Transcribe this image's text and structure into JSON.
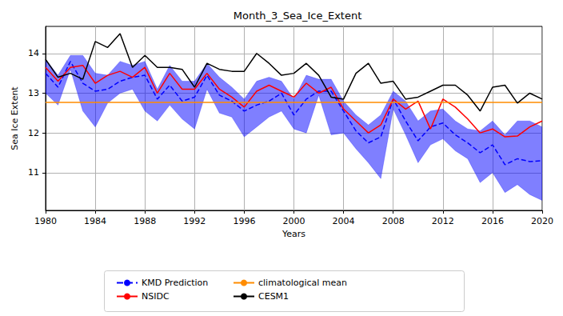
{
  "chart_data": {
    "type": "line",
    "title": "Month_3_Sea_Ice_Extent",
    "x_label": "Years",
    "y_label": "Sea Ice Extent",
    "x": [
      1980,
      1981,
      1982,
      1983,
      1984,
      1985,
      1986,
      1987,
      1988,
      1989,
      1990,
      1991,
      1992,
      1993,
      1994,
      1995,
      1996,
      1997,
      1998,
      1999,
      2000,
      2001,
      2002,
      2003,
      2004,
      2005,
      2006,
      2007,
      2008,
      2009,
      2010,
      2011,
      2012,
      2013,
      2014,
      2015,
      2016,
      2017,
      2018,
      2019,
      2020
    ],
    "series": [
      {
        "name": "KMD Prediction",
        "color": "#0000ff",
        "line_style": "dashed",
        "values": [
          13.5,
          13.15,
          13.8,
          13.25,
          13.05,
          13.1,
          13.3,
          13.4,
          13.45,
          12.85,
          13.2,
          12.8,
          12.9,
          13.45,
          12.95,
          12.8,
          12.55,
          12.7,
          12.8,
          13.0,
          12.45,
          12.85,
          13.05,
          13.05,
          12.55,
          12.05,
          11.75,
          11.9,
          12.85,
          12.3,
          11.8,
          12.15,
          12.25,
          11.95,
          11.75,
          11.5,
          11.7,
          11.2,
          11.35,
          11.28,
          11.3
        ]
      },
      {
        "name": "NSIDC",
        "color": "#ff0000",
        "line_style": "solid",
        "values": [
          13.65,
          13.3,
          13.65,
          13.7,
          13.25,
          13.45,
          13.55,
          13.4,
          13.65,
          13.0,
          13.5,
          13.1,
          13.1,
          13.5,
          13.1,
          12.9,
          12.65,
          13.05,
          13.2,
          13.05,
          12.9,
          13.25,
          13.0,
          13.15,
          12.6,
          12.3,
          12.0,
          12.2,
          12.85,
          12.6,
          12.8,
          12.1,
          12.85,
          12.65,
          12.35,
          12.0,
          12.1,
          11.9,
          11.92,
          12.15,
          12.3
        ]
      },
      {
        "name": "climatological mean",
        "color": "#ff8c00",
        "line_style": "solid",
        "values": [
          12.77,
          12.77,
          12.77,
          12.77,
          12.77,
          12.77,
          12.77,
          12.77,
          12.77,
          12.77,
          12.77,
          12.77,
          12.77,
          12.77,
          12.77,
          12.77,
          12.77,
          12.77,
          12.77,
          12.77,
          12.77,
          12.77,
          12.77,
          12.77,
          12.77,
          12.77,
          12.77,
          12.77,
          12.77,
          12.77,
          12.77,
          12.77,
          12.77,
          12.77,
          12.77,
          12.77,
          12.77,
          12.77,
          12.77,
          12.77,
          12.77
        ]
      },
      {
        "name": "CESM1",
        "color": "#000000",
        "line_style": "solid",
        "values": [
          13.85,
          13.4,
          13.5,
          13.35,
          14.3,
          14.15,
          14.5,
          13.65,
          13.95,
          13.65,
          13.65,
          13.6,
          13.15,
          13.75,
          13.6,
          13.55,
          13.55,
          14.0,
          13.75,
          13.45,
          13.5,
          13.75,
          13.45,
          12.9,
          12.85,
          13.5,
          13.75,
          13.25,
          13.3,
          12.85,
          12.9,
          13.05,
          13.2,
          13.2,
          12.95,
          12.55,
          13.15,
          13.2,
          12.75,
          13.0,
          12.85
        ]
      }
    ],
    "band": {
      "color": "#0000ff",
      "lower": [
        13.0,
        12.7,
        13.6,
        12.55,
        12.15,
        12.75,
        13.0,
        13.1,
        12.55,
        12.3,
        12.7,
        12.35,
        12.1,
        13.1,
        12.5,
        12.4,
        11.9,
        12.15,
        12.4,
        12.55,
        12.1,
        12.0,
        12.95,
        11.95,
        12.0,
        11.6,
        11.25,
        10.85,
        12.6,
        11.95,
        11.25,
        11.7,
        11.85,
        11.55,
        11.35,
        10.75,
        11.0,
        10.5,
        10.7,
        10.45,
        10.3
      ],
      "upper": [
        13.85,
        13.45,
        13.95,
        13.95,
        13.5,
        13.45,
        13.8,
        13.7,
        13.8,
        13.1,
        13.7,
        13.3,
        13.3,
        13.75,
        13.4,
        13.15,
        12.85,
        13.3,
        13.4,
        13.3,
        12.85,
        13.45,
        13.35,
        13.35,
        12.8,
        12.45,
        12.2,
        12.45,
        13.05,
        12.8,
        12.3,
        12.55,
        12.6,
        12.3,
        12.1,
        12.05,
        12.3,
        11.95,
        12.3,
        12.3,
        12.15
      ]
    },
    "xlim": [
      1980,
      2020
    ],
    "xticks": [
      1980,
      1984,
      1988,
      1992,
      1996,
      2000,
      2004,
      2008,
      2012,
      2016,
      2020
    ],
    "ylim": [
      10.05,
      14.68
    ],
    "yticks": [
      11,
      12,
      13,
      14
    ],
    "grid": true,
    "legend": "bottom"
  }
}
